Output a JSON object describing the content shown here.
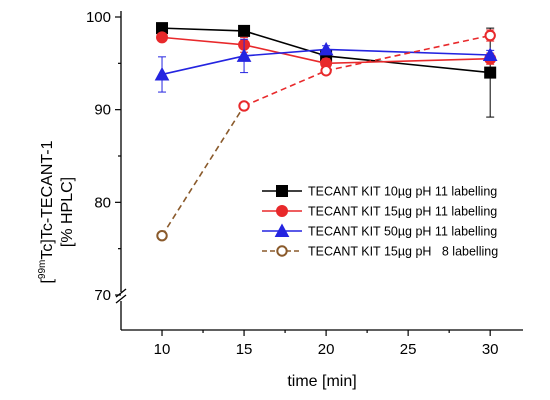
{
  "chart_data": {
    "type": "line",
    "title": "",
    "xlabel": "time [min]",
    "ylabel_line1_pre": "[",
    "ylabel_line1_sup": "99m",
    "ylabel_line1_post": "Tc]Tc-TECANT-1",
    "ylabel_line2": "[% HPLC]",
    "xlim": [
      7.5,
      32
    ],
    "ylim_upper": [
      70,
      100
    ],
    "axis_break": "broken y-axis below 70",
    "xticks": [
      10,
      15,
      20,
      25,
      30
    ],
    "xtick_labels": [
      "10",
      "15",
      "20",
      "25",
      "30"
    ],
    "yticks": [
      70,
      80,
      90,
      100
    ],
    "ytick_labels": [
      "70",
      "80",
      "90",
      "100"
    ],
    "legend_position": "center-right",
    "grid": false,
    "series": [
      {
        "name": "TECANT KIT 10µg pH 11 labelling",
        "color": "#000000",
        "marker": "square-filled",
        "line_style": "solid",
        "x": [
          10,
          15,
          20,
          30
        ],
        "y": [
          98.8,
          98.5,
          95.8,
          94.0
        ],
        "error": [
          0.3,
          0.4,
          0.4,
          4.8
        ]
      },
      {
        "name": "TECANT KIT 15µg pH 11 labelling",
        "color": "#e8292b",
        "marker": "circle-filled",
        "line_style": "solid",
        "x": [
          10,
          15,
          20,
          30
        ],
        "y": [
          97.8,
          97.0,
          95.0,
          95.5
        ],
        "error": [
          0.3,
          0.8,
          0.5,
          0.6
        ]
      },
      {
        "name": "TECANT KIT 50µg pH 11 labelling",
        "color": "#2424e0",
        "marker": "triangle-filled",
        "line_style": "solid",
        "x": [
          10,
          15,
          20,
          30
        ],
        "y": [
          93.8,
          95.8,
          96.5,
          95.9
        ],
        "error": [
          1.9,
          1.8,
          0.4,
          0.5
        ]
      },
      {
        "name": "TECANT KIT 15µg pH   8 labelling",
        "color": "#e8292b",
        "marker": "circle-open",
        "line_style": "dashed",
        "x": [
          10,
          15,
          20,
          30
        ],
        "y": [
          76.4,
          90.4,
          94.2,
          98.0
        ],
        "error": [
          0.2,
          0.3,
          0.4,
          0.6
        ],
        "segment_colors": [
          "#8a5a2b",
          "#e8292b",
          "#e8292b"
        ]
      }
    ]
  }
}
